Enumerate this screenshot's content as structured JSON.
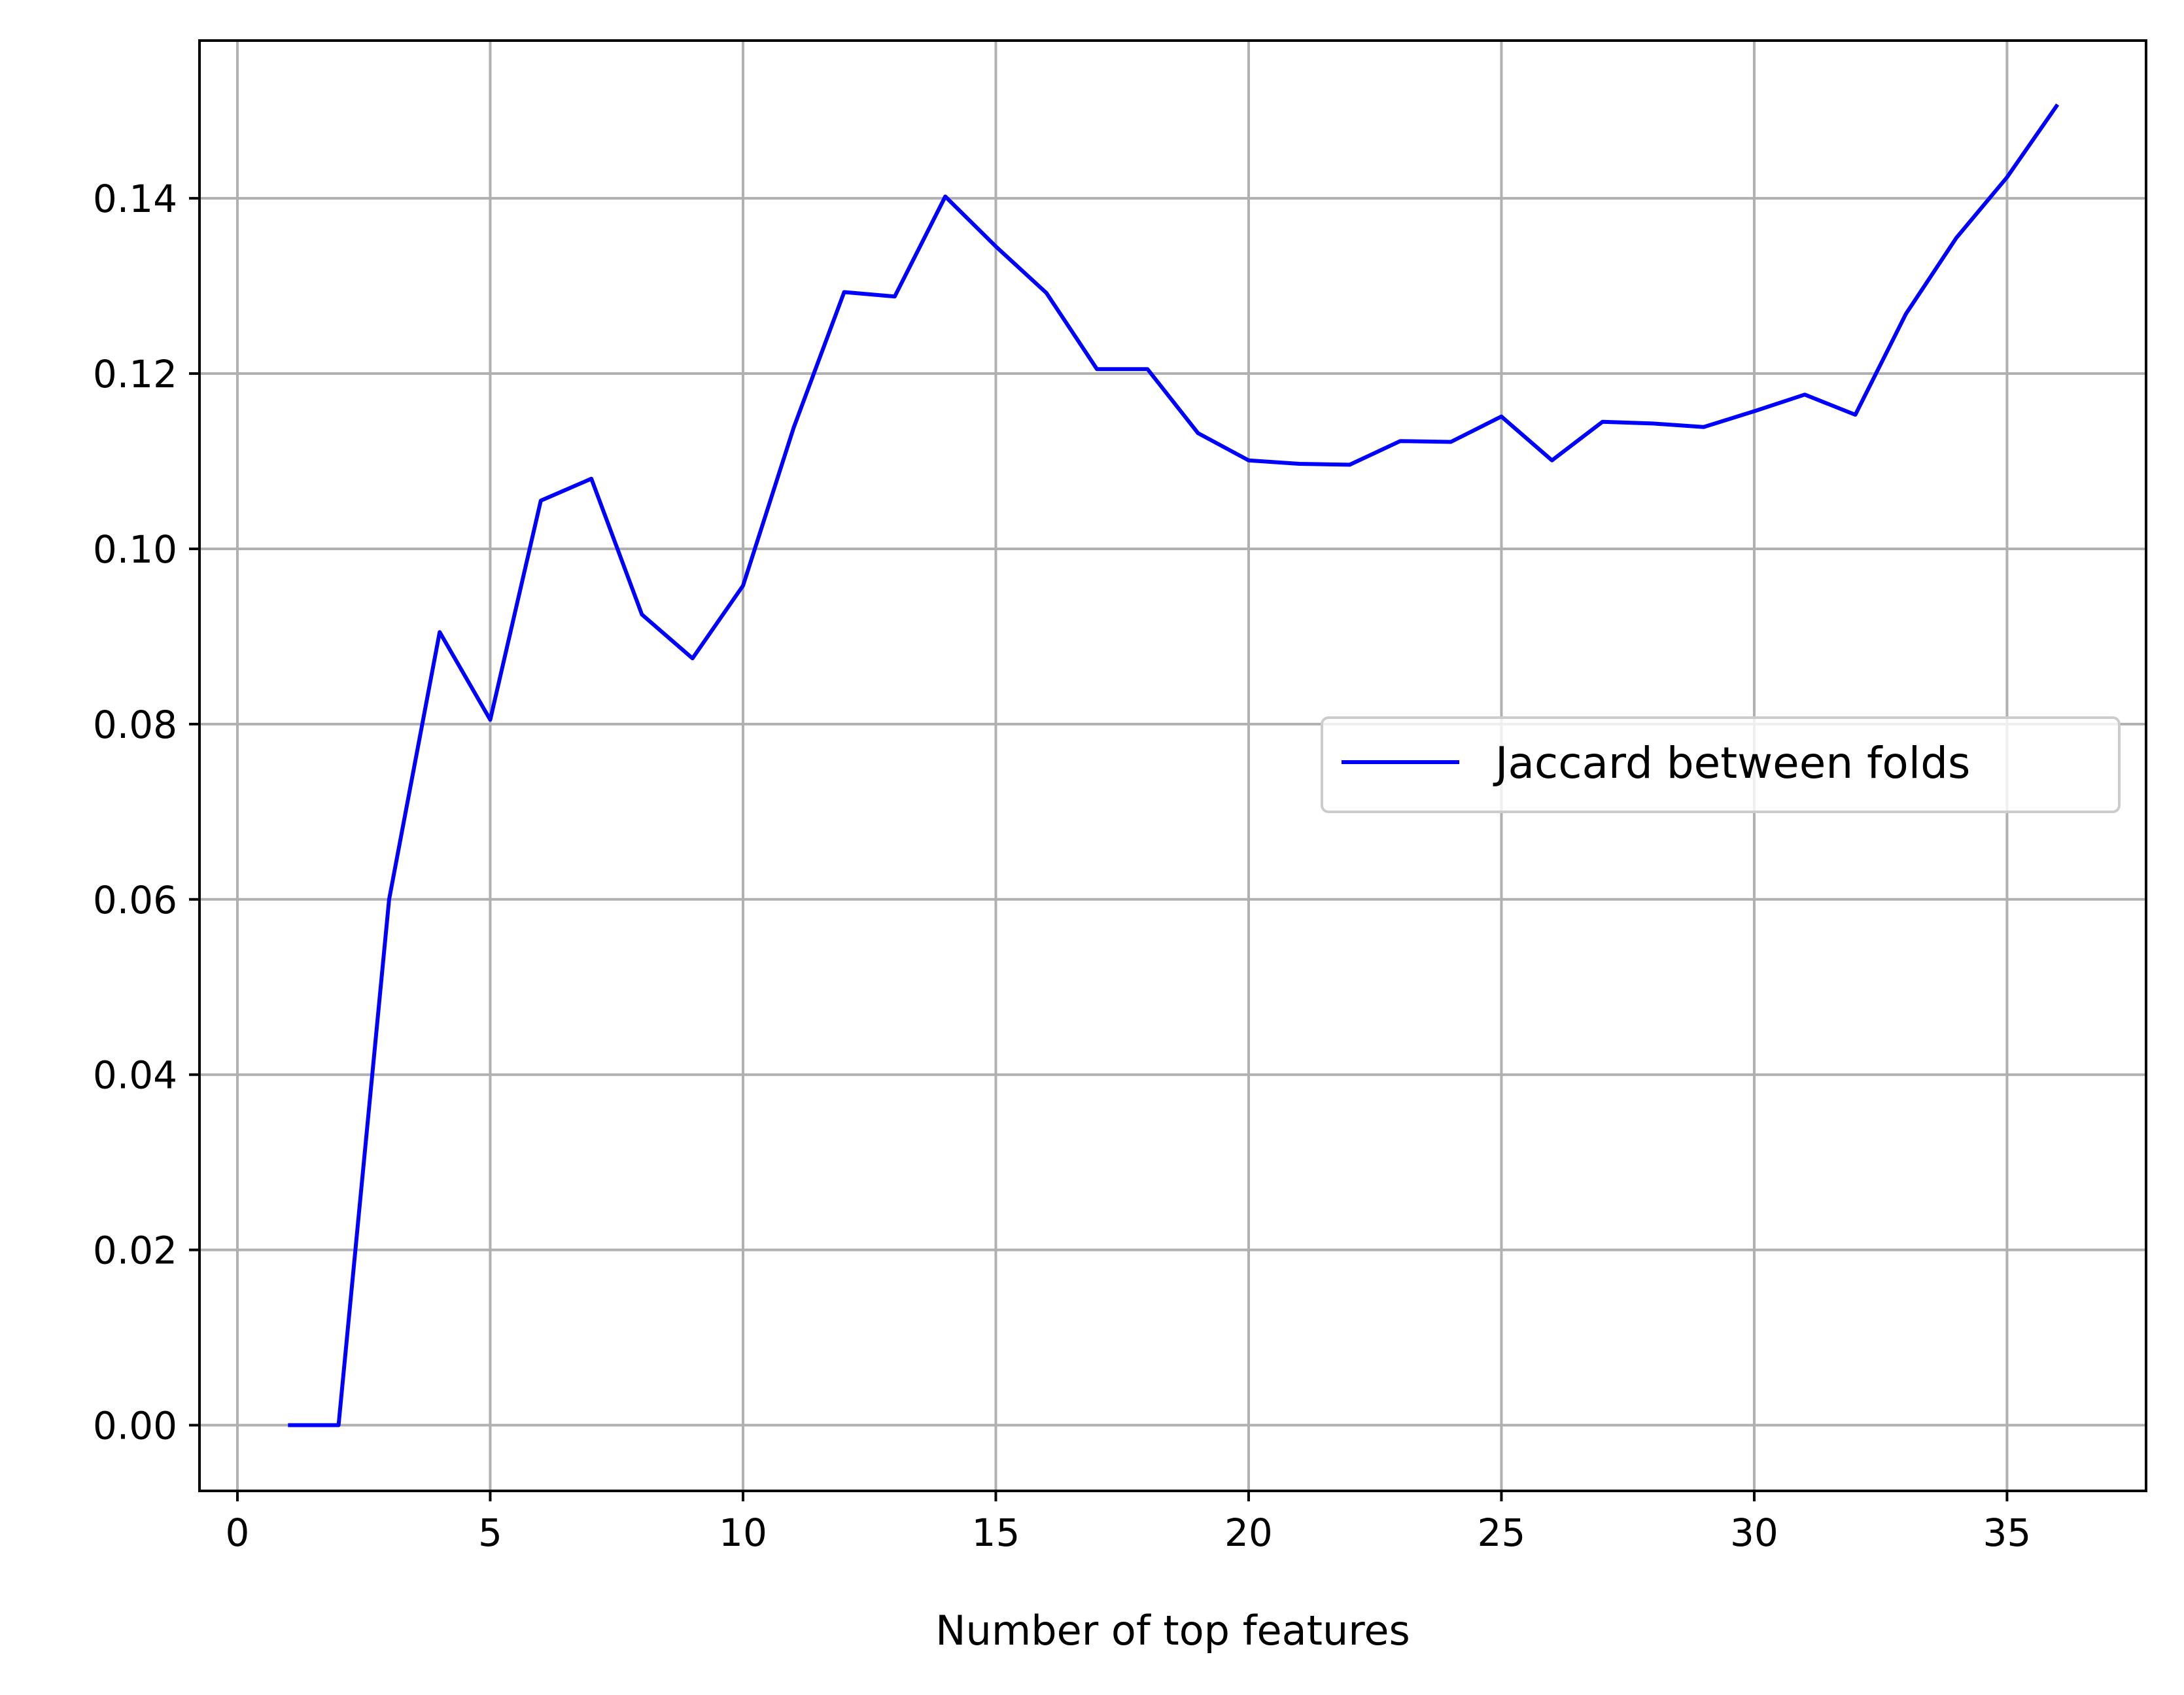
{
  "chart_data": {
    "type": "line",
    "title": "",
    "xlabel": "Number of top features",
    "ylabel": "",
    "xlim": [
      -0.75,
      37.75
    ],
    "ylim": [
      -0.0075,
      0.158
    ],
    "x_ticks": [
      0,
      5,
      10,
      15,
      20,
      25,
      30,
      35
    ],
    "x_tick_labels": [
      "0",
      "5",
      "10",
      "15",
      "20",
      "25",
      "30",
      "35"
    ],
    "y_ticks": [
      0.0,
      0.02,
      0.04,
      0.06,
      0.08,
      0.1,
      0.12,
      0.14
    ],
    "y_tick_labels": [
      "0.00",
      "0.02",
      "0.04",
      "0.06",
      "0.08",
      "0.10",
      "0.12",
      "0.14"
    ],
    "grid": true,
    "legend_position": "center-right",
    "series": [
      {
        "name": "Jaccard between folds",
        "color": "#0000ff",
        "x": [
          1,
          2,
          3,
          4,
          5,
          6,
          7,
          8,
          9,
          10,
          11,
          12,
          13,
          14,
          15,
          16,
          17,
          18,
          19,
          20,
          21,
          22,
          23,
          24,
          25,
          26,
          27,
          28,
          29,
          30,
          31,
          32,
          33,
          34,
          35,
          36
        ],
        "y": [
          0.0,
          0.0,
          0.06,
          0.0905,
          0.0805,
          0.1055,
          0.108,
          0.0925,
          0.0875,
          0.0958,
          0.1138,
          0.1293,
          0.1288,
          0.1402,
          0.1345,
          0.1292,
          0.1205,
          0.1205,
          0.1132,
          0.1101,
          0.1097,
          0.1096,
          0.1123,
          0.1122,
          0.1151,
          0.1101,
          0.1145,
          0.1143,
          0.1139,
          0.1157,
          0.1176,
          0.1153,
          0.1268,
          0.1355,
          0.1424,
          0.1507
        ]
      }
    ]
  }
}
